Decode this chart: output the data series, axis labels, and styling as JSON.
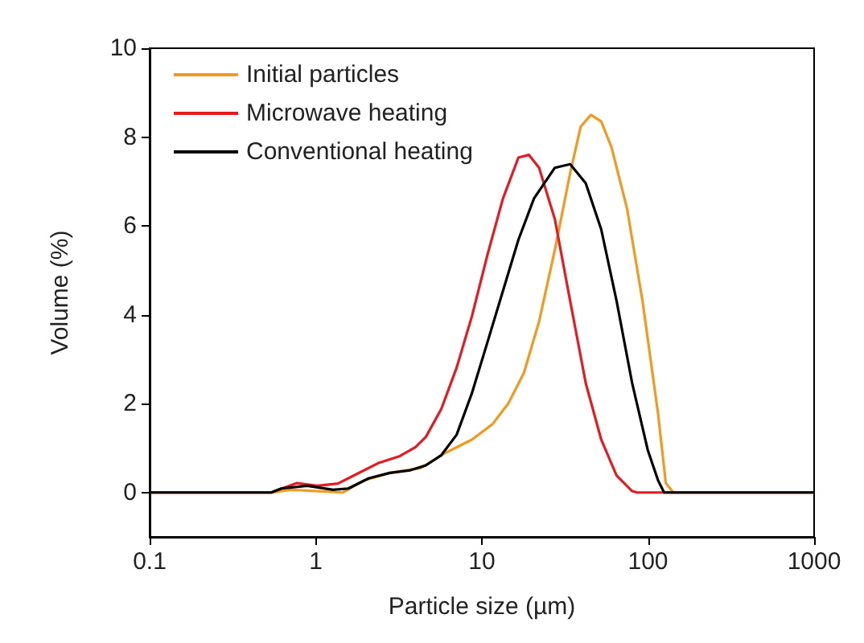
{
  "chart_data": {
    "type": "line",
    "xlabel": "Particle size (µm)",
    "ylabel": "Volume (%)",
    "log": "x",
    "xlim": [
      0.1,
      1000
    ],
    "xticks": [
      0.1,
      1,
      10,
      100,
      1000
    ],
    "ylim": [
      -1,
      10
    ],
    "yticks": [
      0,
      2,
      4,
      6,
      8,
      10
    ],
    "grid": false,
    "legend": "top left",
    "marker": "none",
    "line_style": "solid",
    "series": [
      {
        "name": "Initial particles",
        "color": "#f39a1e",
        "x": [
          0.1,
          0.54,
          0.71,
          1.46,
          1.95,
          2.79,
          4.27,
          6.1,
          8.7,
          11.6,
          14.4,
          17.9,
          22.1,
          27.5,
          34,
          39.3,
          45.3,
          52.3,
          60.3,
          74.8,
          92.7,
          115,
          128,
          142,
          1000
        ],
        "values": [
          0,
          0,
          0.06,
          0,
          0.27,
          0.44,
          0.55,
          0.9,
          1.19,
          1.54,
          2.0,
          2.69,
          3.85,
          5.46,
          7.19,
          8.23,
          8.5,
          8.35,
          7.77,
          6.39,
          4.31,
          1.77,
          0.21,
          0,
          0
        ]
      },
      {
        "name": "Microwave heating",
        "color": "#e8191f",
        "x": [
          0.1,
          0.54,
          0.77,
          1.02,
          1.36,
          1.69,
          2.41,
          3.21,
          3.98,
          4.6,
          5.7,
          7.05,
          8.7,
          10.8,
          13.4,
          16.6,
          19.2,
          22.1,
          27.5,
          34,
          42.2,
          52.3,
          64.7,
          80.3,
          86,
          1000
        ],
        "values": [
          0,
          0,
          0.21,
          0.15,
          0.2,
          0.38,
          0.67,
          0.82,
          1.02,
          1.25,
          1.88,
          2.81,
          3.96,
          5.35,
          6.62,
          7.54,
          7.6,
          7.31,
          6.15,
          4.31,
          2.46,
          1.19,
          0.38,
          0.03,
          0,
          0
        ]
      },
      {
        "name": "Conventional heating",
        "color": "#000000",
        "x": [
          0.1,
          0.54,
          0.62,
          0.89,
          1.27,
          1.57,
          2.09,
          2.79,
          3.71,
          4.6,
          5.7,
          7.05,
          8.7,
          10.8,
          13.4,
          16.6,
          20.6,
          27.5,
          34,
          42.2,
          52.3,
          64.7,
          80.3,
          99.6,
          115,
          125,
          1000
        ],
        "values": [
          0,
          0,
          0.09,
          0.15,
          0.06,
          0.09,
          0.32,
          0.44,
          0.5,
          0.61,
          0.84,
          1.3,
          2.23,
          3.38,
          4.54,
          5.69,
          6.62,
          7.31,
          7.39,
          6.96,
          5.92,
          4.31,
          2.46,
          0.96,
          0.27,
          0,
          0
        ]
      }
    ]
  }
}
